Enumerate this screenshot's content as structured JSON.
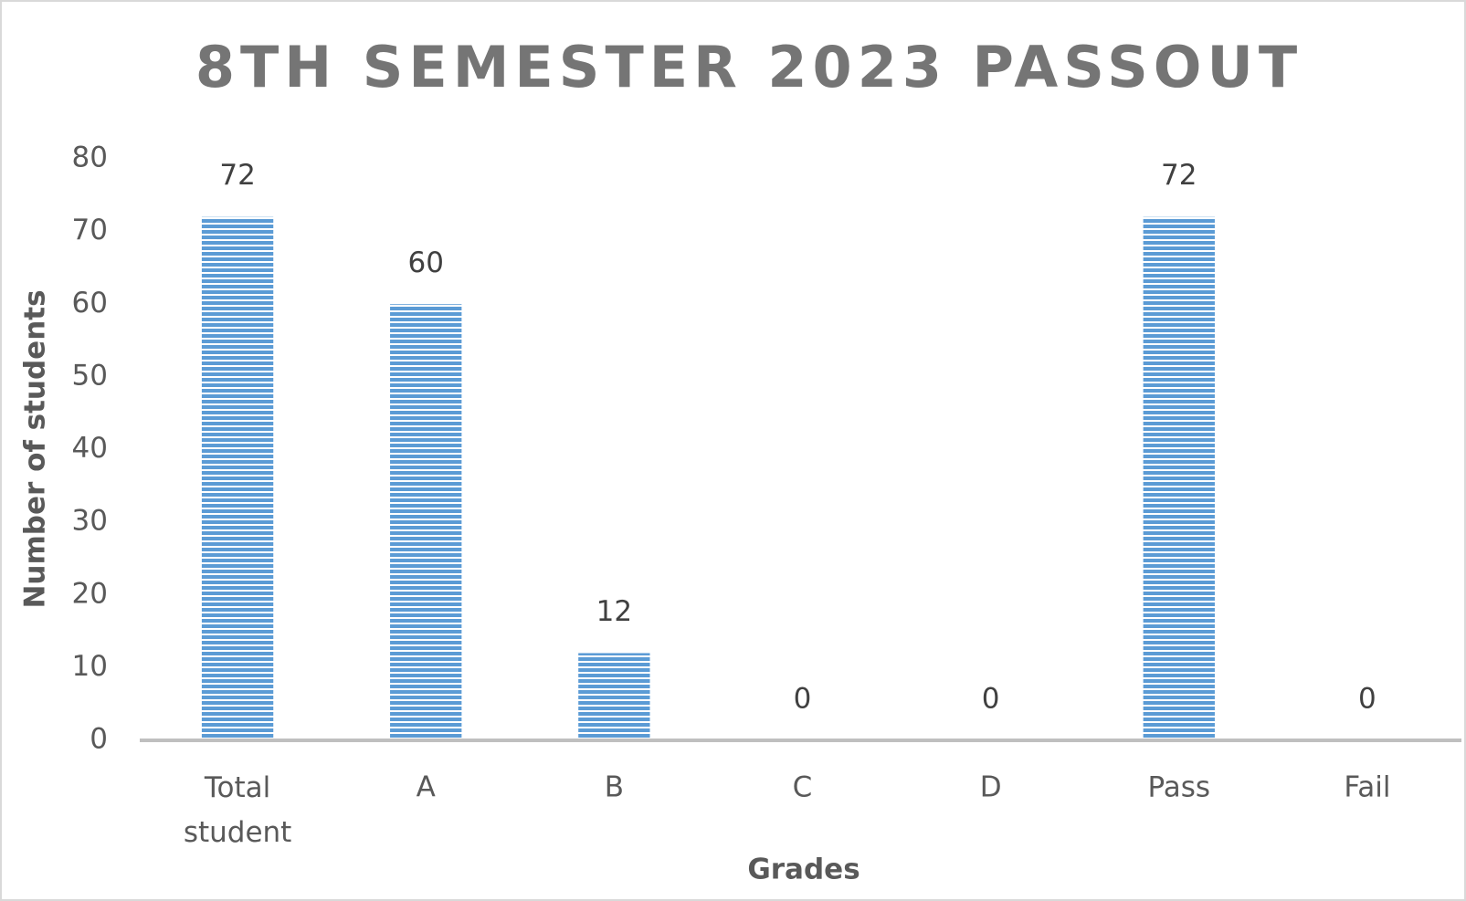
{
  "chart_data": {
    "type": "bar",
    "title": "8TH SEMESTER 2023 PASSOUT",
    "x_label": "Grades",
    "y_label": "Number of students",
    "categories": [
      "Total student",
      "A",
      "B",
      "C",
      "D",
      "Pass",
      "Fail"
    ],
    "values": [
      72,
      60,
      12,
      0,
      0,
      72,
      0
    ],
    "color": "#5b9bd5",
    "ylim": [
      0,
      80
    ],
    "yticks": [
      0,
      10,
      20,
      30,
      40,
      50,
      60,
      70,
      80
    ],
    "grid": false
  }
}
